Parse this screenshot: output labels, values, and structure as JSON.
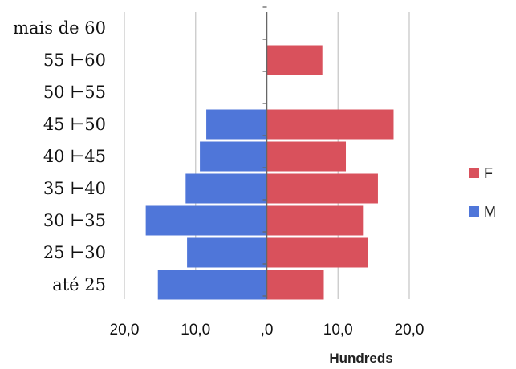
{
  "chart_data": {
    "type": "bar",
    "orientation": "horizontal",
    "categories": [
      "até 25",
      "25 ⊢30",
      "30 ⊢35",
      "35 ⊢40",
      "40 ⊢45",
      "45 ⊢50",
      "50 ⊢55",
      "55 ⊢60",
      "mais de 60"
    ],
    "series": [
      {
        "name": "F",
        "color": "#d9515c",
        "values": [
          8.0,
          14.2,
          13.5,
          15.6,
          11.1,
          17.8,
          0,
          7.8,
          0
        ]
      },
      {
        "name": "M",
        "color": "#4f76d9",
        "values": [
          -15.3,
          -11.2,
          -17.0,
          -11.4,
          -9.4,
          -8.5,
          0,
          0,
          0
        ]
      }
    ],
    "xlim": [
      -20,
      20
    ],
    "xticks": [
      -20,
      -10,
      0,
      10,
      20
    ],
    "xtick_labels": [
      "20,0",
      "10,0",
      ",0",
      "10,0",
      "20,0"
    ],
    "display_unit_label": "Hundreds",
    "grid": "vertical",
    "legend_position": "right"
  }
}
